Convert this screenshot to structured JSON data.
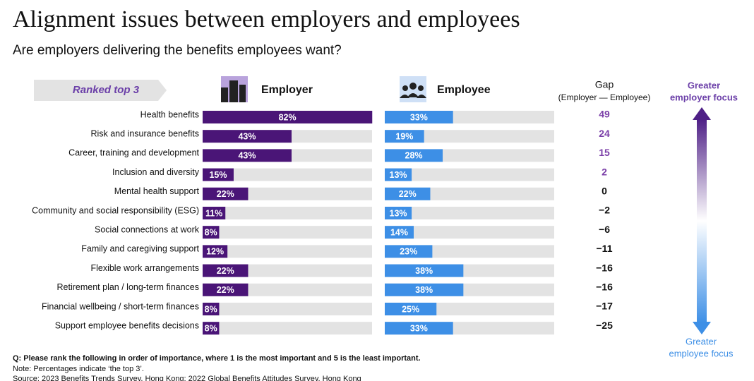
{
  "chart_data": {
    "type": "bar",
    "title": "Alignment issues between employers and employees",
    "subtitle": "Are employers delivering the benefits employees want?",
    "rank_label": "Ranked top 3",
    "categories": [
      "Health benefits",
      "Risk and insurance benefits",
      "Career, training and development",
      "Inclusion and diversity",
      "Mental health support",
      "Community and social responsibility (ESG)",
      "Social connections at work",
      "Family and caregiving support",
      "Flexible work arrangements",
      "Retirement plan / long-term finances",
      "Financial wellbeing / short-term finances",
      "Support employee benefits decisions"
    ],
    "series": [
      {
        "name": "Employer",
        "color": "#4a1577",
        "values": [
          82,
          43,
          43,
          15,
          22,
          11,
          8,
          12,
          22,
          22,
          8,
          8
        ],
        "value_labels": [
          "82%",
          "43%",
          "43%",
          "15%",
          "22%",
          "11%",
          "8%",
          "12%",
          "22%",
          "22%",
          "8%",
          "8%"
        ]
      },
      {
        "name": "Employee",
        "color": "#3d8fe6",
        "values": [
          33,
          19,
          28,
          13,
          22,
          13,
          14,
          23,
          38,
          38,
          25,
          33
        ],
        "value_labels": [
          "33%",
          "19%",
          "28%",
          "13%",
          "22%",
          "13%",
          "14%",
          "23%",
          "38%",
          "38%",
          "25%",
          "33%"
        ]
      }
    ],
    "gap": {
      "title": "Gap",
      "subtitle": "(Employer — Employee)",
      "positive_color": "#7b3fa8",
      "color": "#111111",
      "values": [
        49,
        24,
        15,
        2,
        0,
        -2,
        -6,
        -11,
        -16,
        -16,
        -17,
        -25
      ],
      "value_labels": [
        "49",
        "24",
        "15",
        "2",
        "0",
        "−2",
        "−6",
        "−11",
        "−16",
        "−16",
        "−17",
        "−25"
      ]
    },
    "annotations": {
      "top": [
        "Greater",
        "employer focus"
      ],
      "bottom": [
        "Greater",
        "employee focus"
      ]
    },
    "notes": [
      "Q: Please rank the following in order of importance, where 1 is the most important and 5 is the least important.",
      "Note: Percentages indicate ‘the top 3’.",
      "Source: 2023 Benefits Trends Survey, Hong Kong; 2022 Global Benefits Attitudes Survey, Hong Kong"
    ]
  }
}
